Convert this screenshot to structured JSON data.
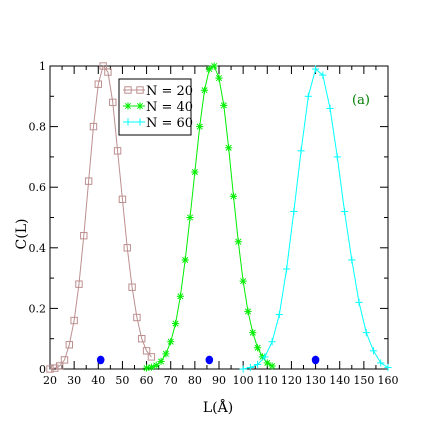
{
  "chart_data": {
    "type": "line",
    "title": "",
    "xlabel": "L(Å)",
    "ylabel": "C(L)",
    "xlim": [
      20,
      160
    ],
    "ylim": [
      0,
      1.0
    ],
    "xticks": [
      20,
      30,
      40,
      50,
      60,
      70,
      80,
      90,
      100,
      110,
      120,
      130,
      140,
      150,
      160
    ],
    "xtick_labels": [
      "20",
      "30",
      "40",
      "50",
      "60",
      "70",
      "80",
      "90",
      "100",
      "110",
      "120",
      "130",
      "140",
      "150",
      "160"
    ],
    "yticks": [
      0,
      0.2,
      0.4,
      0.6,
      0.8,
      1
    ],
    "ytick_labels": [
      "0",
      "0.2",
      "0.4",
      "0.6",
      "0.8",
      "1"
    ],
    "grid": false,
    "legend_position": "top-center",
    "panel_label": "(a)",
    "series": [
      {
        "name": "N = 20",
        "color": "#bc8f8f",
        "marker": "square-open",
        "x": [
          20,
          22,
          24,
          26,
          28,
          30,
          32,
          34,
          36,
          38,
          40,
          42,
          44,
          46,
          48,
          50,
          52,
          54,
          56,
          58,
          60,
          62
        ],
        "y": [
          0.0,
          0.003,
          0.01,
          0.03,
          0.08,
          0.16,
          0.28,
          0.44,
          0.62,
          0.8,
          0.94,
          1.0,
          0.98,
          0.88,
          0.72,
          0.56,
          0.4,
          0.27,
          0.17,
          0.1,
          0.06,
          0.04
        ]
      },
      {
        "name": "N = 40",
        "color": "#00ee00",
        "marker": "asterisk",
        "x": [
          60,
          62,
          64,
          66,
          68,
          70,
          72,
          74,
          76,
          78,
          80,
          82,
          84,
          86,
          88,
          90,
          92,
          94,
          96,
          98,
          100,
          102,
          104,
          106,
          108,
          110,
          112
        ],
        "y": [
          0.003,
          0.006,
          0.012,
          0.025,
          0.05,
          0.09,
          0.15,
          0.24,
          0.36,
          0.5,
          0.65,
          0.8,
          0.92,
          0.99,
          1.0,
          0.96,
          0.87,
          0.73,
          0.57,
          0.42,
          0.29,
          0.19,
          0.12,
          0.07,
          0.04,
          0.02,
          0.01
        ]
      },
      {
        "name": "N = 60",
        "color": "#00ffff",
        "marker": "plus",
        "x": [
          100,
          103,
          106,
          109,
          112,
          115,
          118,
          121,
          124,
          127,
          130,
          133,
          136,
          139,
          142,
          145,
          148,
          151,
          154,
          157,
          160
        ],
        "y": [
          0.0,
          0.005,
          0.015,
          0.04,
          0.09,
          0.18,
          0.33,
          0.52,
          0.72,
          0.9,
          0.99,
          0.97,
          0.86,
          0.7,
          0.52,
          0.36,
          0.22,
          0.12,
          0.06,
          0.02,
          0.005
        ]
      }
    ],
    "annotations": {
      "dot_color": "#0000ff",
      "dots": [
        {
          "x": 41,
          "y": 0.03
        },
        {
          "x": 86,
          "y": 0.03
        },
        {
          "x": 130,
          "y": 0.03
        }
      ]
    }
  }
}
